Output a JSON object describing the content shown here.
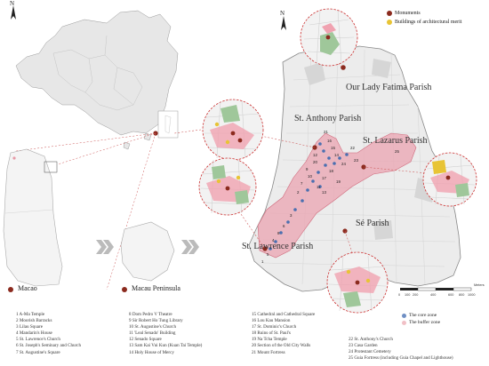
{
  "colors": {
    "monument": "#8b2a1e",
    "architecture": "#e8c435",
    "core_zone": "#6f8fc4",
    "buffer_zone": "#f1c0c6",
    "china_fill": "#e6e6e6",
    "parish_pink": "#e79aa7"
  },
  "icons": {
    "north_arrow": "north-arrow-icon",
    "process_arrow": "chevron-arrow-icon"
  },
  "legend_top": [
    {
      "label": "Monuments",
      "color_key": "monument"
    },
    {
      "label": "Buildings of architectural merit",
      "color_key": "architecture"
    }
  ],
  "legend_zones": [
    {
      "label": "The core zone",
      "color_key": "core_zone"
    },
    {
      "label": "The buffer zone",
      "color_key": "buffer_zone"
    }
  ],
  "north_label": "N",
  "region_labels": {
    "macao": "Macao",
    "peninsula": "Macau Peninsula"
  },
  "parishes": [
    "Our Lady Fatima Parish",
    "St. Anthony Parish",
    "St. Lazarus Parish",
    "Sé Parish",
    "St. Lawrence Parish"
  ],
  "scale_bar": {
    "ticks": [
      "0",
      "100",
      "200",
      "400",
      "600",
      "800",
      "1000"
    ],
    "unit": "Meters"
  },
  "site_markers": [
    "21",
    "16",
    "15",
    "14",
    "12",
    "20",
    "9",
    "10",
    "7",
    "2",
    "13",
    "22",
    "24",
    "18",
    "17",
    "11",
    "23",
    "19",
    "25",
    "3",
    "6",
    "8",
    "4",
    "5",
    "1"
  ],
  "site_list": [
    [
      "1   A-Ma Temple",
      "2   Moorish Barracks",
      "3   Lilau Square",
      "4   Mandarin's House",
      "5   St. Lawrence's Church",
      "6   St. Joseph's Seminary and Church",
      "7   St. Augustine's Square"
    ],
    [
      "8   Dom Pedro V Theatre",
      "9   Sir Robert Ho Tung Library",
      "10  St. Augustine's Church",
      "11  'Leal Senado' Building",
      "12  Senado Square",
      "13  Sam Kai Vui Kun (Kuan Tai Temple)",
      "14  Holy House of Mercy"
    ],
    [
      "15  Cathedral and Cathedral Square",
      "16  Lou Kau Mansion",
      "17  St. Dominic's Church",
      "18  Ruins of St. Paul's",
      "19  Na Tcha Temple",
      "20  Section of the Old City Walls",
      "21  Mount Fortress"
    ],
    [
      "22  St. Anthony's Church",
      "23  Casa Garden",
      "24  Protestant Cemetery",
      "25  Guia Fortress (including Guia Chapel and Lighthouse)"
    ]
  ]
}
